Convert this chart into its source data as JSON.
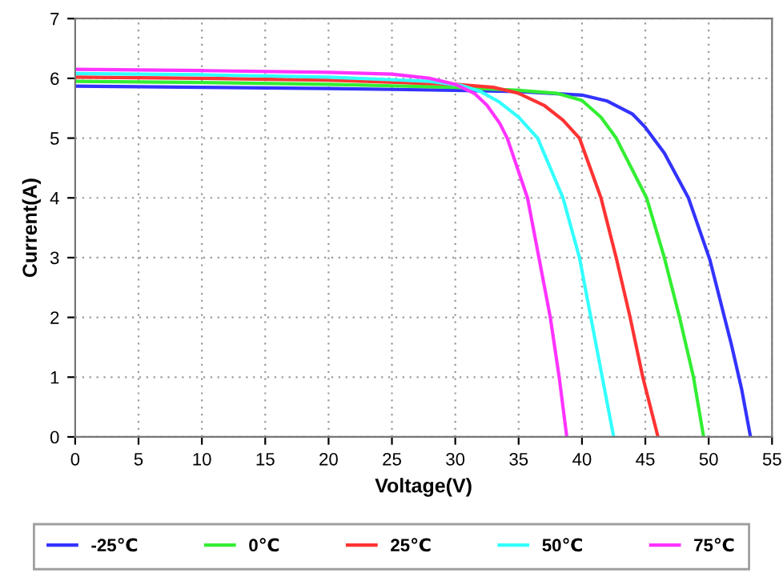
{
  "chart_data": {
    "type": "line",
    "xlabel": "Voltage(V)",
    "ylabel": "Current(A)",
    "xlim": [
      0,
      55
    ],
    "xticks": [
      0,
      5,
      10,
      15,
      20,
      25,
      30,
      35,
      40,
      45,
      50,
      55
    ],
    "ylim": [
      0,
      7
    ],
    "yticks": [
      0,
      1,
      2,
      3,
      4,
      5,
      6,
      7
    ],
    "grid": true,
    "legend": "bottom",
    "marker": "none",
    "line_style": "solid",
    "series": [
      {
        "name": "-25℃",
        "color": "#3333ff",
        "x": [
          0,
          10,
          20,
          30,
          35,
          40,
          42,
          44,
          45,
          46.5,
          48.4,
          50.1,
          51.8,
          52.6,
          53.3
        ],
        "values": [
          5.87,
          5.85,
          5.83,
          5.8,
          5.78,
          5.72,
          5.62,
          5.4,
          5.18,
          4.75,
          4.0,
          2.96,
          1.54,
          0.8,
          0
        ]
      },
      {
        "name": "0℃",
        "color": "#33ee33",
        "x": [
          0,
          10,
          20,
          30,
          35,
          38,
          40,
          41.5,
          42.7,
          45.1,
          46.5,
          47.7,
          48.8,
          49.6
        ],
        "values": [
          5.95,
          5.93,
          5.9,
          5.85,
          5.8,
          5.75,
          5.63,
          5.35,
          5,
          4,
          3,
          2,
          1,
          0
        ]
      },
      {
        "name": "25℃",
        "color": "#ff3333",
        "x": [
          0,
          10,
          20,
          30,
          33,
          35,
          37,
          38.5,
          39.8,
          41.5,
          42.7,
          43.8,
          44.8,
          46
        ],
        "values": [
          6.02,
          6.0,
          5.97,
          5.9,
          5.85,
          5.75,
          5.55,
          5.3,
          5,
          4,
          3,
          2,
          1,
          0
        ]
      },
      {
        "name": "50℃",
        "color": "#33ffff",
        "x": [
          0,
          10,
          20,
          28,
          30.5,
          32,
          33.5,
          35,
          36.5,
          38.5,
          39.8,
          40.7,
          41.6,
          42.5
        ],
        "values": [
          6.08,
          6.06,
          6.02,
          5.95,
          5.88,
          5.78,
          5.6,
          5.35,
          5,
          4,
          3,
          2,
          1,
          0
        ]
      },
      {
        "name": "75℃",
        "color": "#ff33ff",
        "x": [
          0,
          10,
          20,
          25,
          28,
          30,
          31.5,
          32.5,
          33.5,
          34.1,
          35.7,
          36.6,
          37.5,
          38.2,
          38.8
        ],
        "values": [
          6.15,
          6.13,
          6.1,
          6.07,
          6.0,
          5.9,
          5.75,
          5.55,
          5.25,
          5,
          4,
          3,
          2,
          1,
          0
        ]
      }
    ]
  }
}
